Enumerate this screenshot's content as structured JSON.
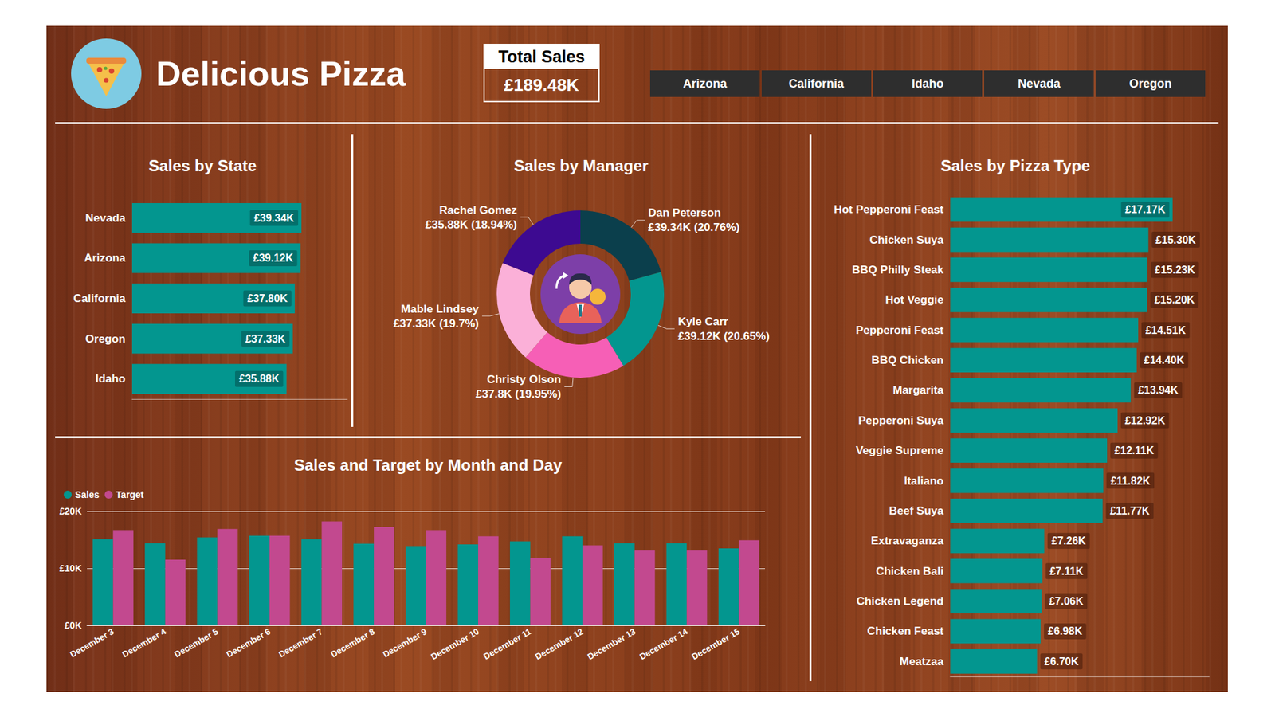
{
  "header": {
    "title": "Delicious Pizza"
  },
  "kpi": {
    "label": "Total Sales",
    "value": "£189.48K"
  },
  "slicer": [
    "Arizona",
    "California",
    "Idaho",
    "Nevada",
    "Oregon"
  ],
  "chart_data": [
    {
      "type": "bar",
      "title": "Sales by State",
      "orientation": "horizontal",
      "categories": [
        "Nevada",
        "Arizona",
        "California",
        "Oregon",
        "Idaho"
      ],
      "values": [
        39.34,
        39.12,
        37.8,
        37.33,
        35.88
      ],
      "value_labels": [
        "£39.34K",
        "£39.12K",
        "£37.80K",
        "£37.33K",
        "£35.88K"
      ],
      "color": "#03968f",
      "xlim": [
        0,
        50
      ],
      "data_labels": true,
      "tick_labels": "y"
    },
    {
      "type": "donut",
      "title": "Sales by Manager",
      "categories": [
        "Dan Peterson",
        "Kyle Carr",
        "Christy Olson",
        "Mable Lindsey",
        "Rachel Gomez"
      ],
      "values": [
        39.34,
        39.12,
        37.8,
        37.33,
        35.88
      ],
      "value_labels": [
        "£39.34K (20.76%)",
        "£39.12K (20.65%)",
        "£37.8K (19.95%)",
        "£37.33K (19.7%)",
        "£35.88K (18.94%)"
      ],
      "colors": [
        "#0b3f4c",
        "#03968f",
        "#f65fb6",
        "#fbb0d8",
        "#3d0a91"
      ],
      "data_labels": true
    },
    {
      "type": "bar",
      "title": "Sales and Target by Month and Day",
      "categories": [
        "December 3",
        "December 4",
        "December 5",
        "December 6",
        "December 7",
        "December 8",
        "December 9",
        "December 10",
        "December 11",
        "December 12",
        "December 13",
        "December 14",
        "December 15"
      ],
      "series": [
        {
          "name": "Sales",
          "color": "#03968f",
          "values": [
            15.1,
            14.4,
            15.4,
            15.7,
            15.1,
            14.3,
            13.9,
            14.2,
            14.7,
            15.6,
            14.4,
            14.4,
            13.5
          ]
        },
        {
          "name": "Target",
          "color": "#c2498f",
          "values": [
            16.7,
            11.5,
            16.9,
            15.7,
            18.2,
            17.2,
            16.7,
            15.6,
            11.8,
            14.0,
            13.1,
            13.1,
            14.9
          ]
        }
      ],
      "ylim": [
        0,
        20
      ],
      "yticks": [
        {
          "value": 0,
          "label": "£0K"
        },
        {
          "value": 10,
          "label": "£10K"
        },
        {
          "value": 20,
          "label": "£20K"
        }
      ],
      "grid": true,
      "legend": "top-left"
    },
    {
      "type": "bar",
      "title": "Sales by Pizza Type",
      "orientation": "horizontal",
      "categories": [
        "Hot Pepperoni Feast",
        "Chicken Suya",
        "BBQ Philly Steak",
        "Hot Veggie",
        "Pepperoni Feast",
        "BBQ Chicken",
        "Margarita",
        "Pepperoni Suya",
        "Veggie Supreme",
        "Italiano",
        "Beef Suya",
        "Extravaganza",
        "Chicken Bali",
        "Chicken Legend",
        "Chicken Feast",
        "Meatzaa"
      ],
      "values": [
        17.17,
        15.3,
        15.23,
        15.2,
        14.51,
        14.4,
        13.94,
        12.92,
        12.11,
        11.82,
        11.77,
        7.26,
        7.11,
        7.06,
        6.98,
        6.7
      ],
      "value_labels": [
        "£17.17K",
        "£15.30K",
        "£15.23K",
        "£15.20K",
        "£14.51K",
        "£14.40K",
        "£13.94K",
        "£12.92K",
        "£12.11K",
        "£11.82K",
        "£11.77K",
        "£7.26K",
        "£7.11K",
        "£7.06K",
        "£6.98K",
        "£6.70K"
      ],
      "color": "#03968f",
      "xlim": [
        0,
        20
      ],
      "data_labels": true,
      "tick_labels": "y"
    }
  ]
}
